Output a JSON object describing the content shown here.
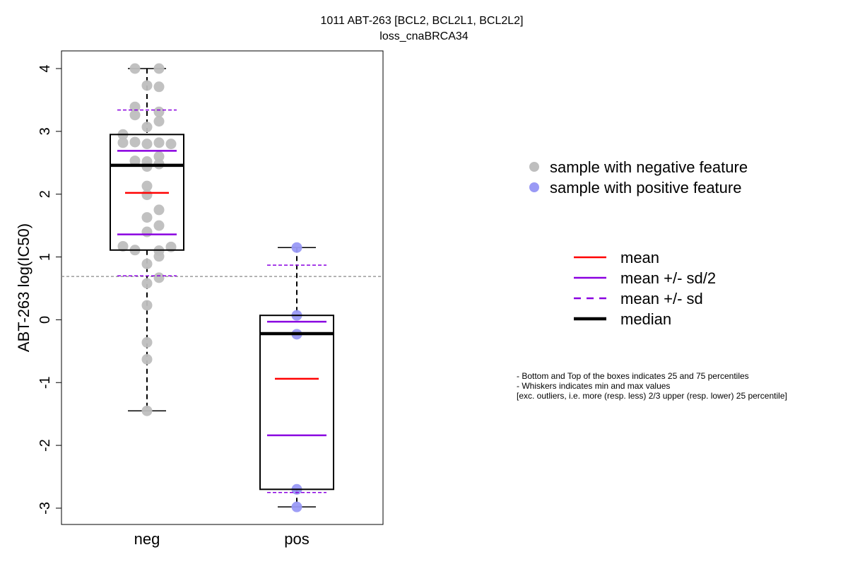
{
  "chart_data": {
    "type": "box",
    "title_line1": "1011 ABT-263 [BCL2, BCL2L1, BCL2L2]",
    "title_line2": "loss_cnaBRCA34",
    "ylabel": "ABT-263 log(IC50)",
    "ylim": [
      -3.25,
      4.3
    ],
    "yticks": [
      "-3",
      "-2",
      "-1",
      "0",
      "1",
      "2",
      "3",
      "4"
    ],
    "ytick_values": [
      -3,
      -2,
      -1,
      0,
      1,
      2,
      3,
      4
    ],
    "reference_line": 0.69,
    "categories": [
      "neg",
      "pos"
    ],
    "groups": [
      {
        "name": "neg",
        "whisker_low": -1.45,
        "q1": 1.11,
        "median": 2.46,
        "q3": 2.95,
        "whisker_high": 4.0,
        "mean": 2.02,
        "mean_minus_half_sd": 1.36,
        "mean_plus_half_sd": 2.69,
        "mean_minus_sd": 0.7,
        "mean_plus_sd": 3.34,
        "points": [
          4.0,
          4.0,
          3.73,
          3.71,
          3.39,
          3.31,
          3.26,
          3.16,
          3.07,
          2.95,
          2.83,
          2.82,
          2.82,
          2.8,
          2.8,
          2.6,
          2.53,
          2.52,
          2.48,
          2.44,
          2.13,
          1.99,
          1.75,
          1.63,
          1.5,
          1.4,
          1.17,
          1.16,
          1.11,
          1.1,
          1.01,
          0.89,
          0.67,
          0.58,
          0.23,
          -0.36,
          -0.63,
          -1.45
        ]
      },
      {
        "name": "pos",
        "whisker_low": -2.98,
        "q1": -2.7,
        "median": -0.22,
        "q3": 0.07,
        "whisker_high": 1.15,
        "mean": -0.94,
        "mean_minus_half_sd": -1.84,
        "mean_plus_half_sd": -0.03,
        "mean_minus_sd": -2.75,
        "mean_plus_sd": 0.87,
        "points": [
          1.15,
          0.07,
          -0.23,
          -2.7,
          -2.98
        ]
      }
    ],
    "legend_points": [
      {
        "label": "sample with negative feature",
        "color": "#bebebe"
      },
      {
        "label": "sample with positive feature",
        "color": "#9999f5"
      }
    ],
    "legend_lines": [
      {
        "label": "mean",
        "color": "#ff0000",
        "style": "solid",
        "weight": "normal"
      },
      {
        "label": "mean +/- sd/2",
        "color": "#8a00e0",
        "style": "solid",
        "weight": "normal"
      },
      {
        "label": "mean +/- sd",
        "color": "#8a00e0",
        "style": "dashed",
        "weight": "normal"
      },
      {
        "label": "median",
        "color": "#000000",
        "style": "solid",
        "weight": "bold"
      }
    ],
    "notes": [
      "- Bottom and Top of the boxes indicates 25 and 75 percentiles",
      "- Whiskers indicates min and max values",
      "[exc. outliers, i.e. more (resp. less) 2/3 upper (resp. lower) 25 percentile]"
    ]
  }
}
